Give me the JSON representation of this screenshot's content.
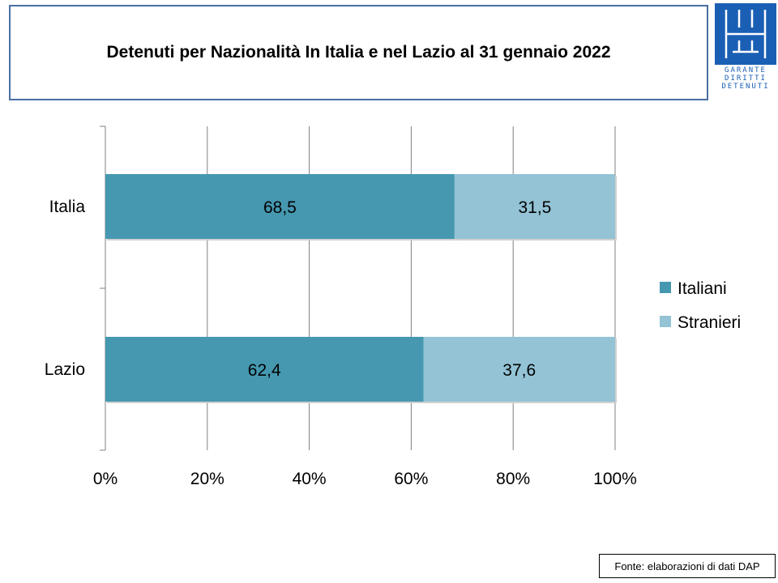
{
  "title": "Detenuti per Nazionalità In Italia e nel Lazio al 31 gennaio 2022",
  "logo": {
    "lines": [
      "GARANTE",
      "DIRITTI",
      "DETENUTI"
    ]
  },
  "footer": "Fonte: elaborazioni di dati DAP",
  "colors": {
    "italiani": "#4598b0",
    "stranieri": "#93c3d5",
    "grid": "#808080"
  },
  "chart_data": {
    "type": "bar",
    "orientation": "horizontal",
    "stacked": "percent",
    "categories": [
      "Italia",
      "Lazio"
    ],
    "series": [
      {
        "name": "Italiani",
        "values": [
          68.5,
          62.4
        ],
        "labels": [
          "68,5",
          "62,4"
        ]
      },
      {
        "name": "Stranieri",
        "values": [
          31.5,
          37.6
        ],
        "labels": [
          "31,5",
          "37,6"
        ]
      }
    ],
    "xlim": [
      0,
      100
    ],
    "xticks": [
      "0%",
      "20%",
      "40%",
      "60%",
      "80%",
      "100%"
    ],
    "grid": true,
    "legend": "right"
  }
}
